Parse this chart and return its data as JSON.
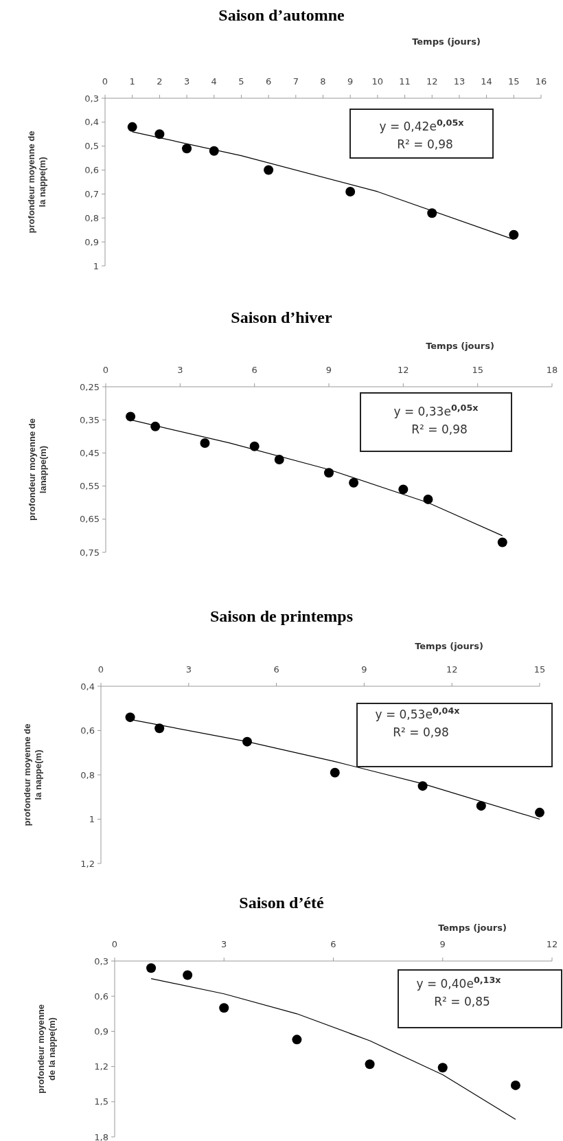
{
  "chart_data": [
    {
      "type": "scatter",
      "title": "Saison d’automne",
      "xlabel": "Temps (jours)",
      "ylabel": "profondeur moyenne de\nla nappe(m)",
      "marker": "circle",
      "xlim": [
        0,
        16
      ],
      "xticks": [
        0,
        1,
        2,
        3,
        4,
        5,
        6,
        7,
        8,
        9,
        10,
        11,
        12,
        13,
        14,
        15,
        16
      ],
      "ylim": [
        1,
        0.3
      ],
      "yticks": [
        {
          "value": 0.3,
          "label": "0,3"
        },
        {
          "value": 0.4,
          "label": "0,4"
        },
        {
          "value": 0.5,
          "label": "0,5"
        },
        {
          "value": 0.6,
          "label": "0,6"
        },
        {
          "value": 0.7,
          "label": "0,7"
        },
        {
          "value": 0.8,
          "label": "0,8"
        },
        {
          "value": 0.9,
          "label": "0,9"
        },
        {
          "value": 1,
          "label": "1"
        }
      ],
      "annotations": [
        "y = 0,42e$^{0,05x}$",
        "R² = 0,98"
      ],
      "series": [
        {
          "color": "#000000",
          "x": [
            1,
            2,
            3,
            4,
            6,
            9,
            12,
            15
          ],
          "values": [
            0.42,
            0.45,
            0.51,
            0.52,
            0.6,
            0.69,
            0.78,
            0.87
          ]
        },
        {
          "type": "line",
          "marker": "none",
          "color": "#000000",
          "x": [
            1,
            5,
            10,
            15
          ],
          "values": [
            0.44,
            0.54,
            0.69,
            0.89
          ]
        }
      ]
    },
    {
      "type": "scatter",
      "title": "Saison d’hiver",
      "xlabel": "Temps (jours)",
      "ylabel": "profondeur moyenne de\nlanappe(m)",
      "marker": "circle",
      "xlim": [
        0,
        18
      ],
      "xticks": [
        0,
        3,
        6,
        9,
        12,
        15,
        18
      ],
      "ylim": [
        0.75,
        0.25
      ],
      "yticks": [
        {
          "value": 0.25,
          "label": "0,25"
        },
        {
          "value": 0.35,
          "label": "0,35"
        },
        {
          "value": 0.45,
          "label": "0,45"
        },
        {
          "value": 0.55,
          "label": "0,55"
        },
        {
          "value": 0.65,
          "label": "0,65"
        },
        {
          "value": 0.75,
          "label": "0,75"
        }
      ],
      "annotations": [
        "y = 0,33e$^{0,05x}$",
        "R² = 0,98"
      ],
      "series": [
        {
          "color": "#000000",
          "x": [
            1,
            2,
            4,
            6,
            7,
            9,
            10,
            12,
            13,
            16
          ],
          "values": [
            0.34,
            0.37,
            0.42,
            0.43,
            0.47,
            0.51,
            0.54,
            0.56,
            0.59,
            0.72
          ]
        },
        {
          "type": "line",
          "marker": "none",
          "color": "#000000",
          "x": [
            1,
            5,
            9,
            13,
            16
          ],
          "values": [
            0.35,
            0.42,
            0.5,
            0.6,
            0.7
          ]
        }
      ]
    },
    {
      "type": "scatter",
      "title": "Saison de printemps",
      "xlabel": "Temps (jours)",
      "ylabel": "profondeur moyenne de\nla nappe(m)",
      "marker": "circle",
      "xlim": [
        0,
        15
      ],
      "xticks": [
        0,
        3,
        6,
        9,
        12,
        15
      ],
      "ylim": [
        1.2,
        0.4
      ],
      "yticks": [
        {
          "value": 0.4,
          "label": "0,4"
        },
        {
          "value": 0.6,
          "label": "0,6"
        },
        {
          "value": 0.8,
          "label": "0,8"
        },
        {
          "value": 1,
          "label": "1"
        },
        {
          "value": 1.2,
          "label": "1,2"
        }
      ],
      "annotations": [
        "y = 0,53e$^{0,04x}$",
        "R² = 0,98"
      ],
      "series": [
        {
          "color": "#000000",
          "x": [
            1,
            2,
            5,
            8,
            11,
            13,
            15
          ],
          "values": [
            0.54,
            0.59,
            0.65,
            0.79,
            0.85,
            0.94,
            0.97
          ]
        },
        {
          "type": "line",
          "marker": "none",
          "color": "#000000",
          "x": [
            1,
            5,
            8,
            11,
            15
          ],
          "values": [
            0.55,
            0.65,
            0.74,
            0.84,
            1.0
          ]
        }
      ]
    },
    {
      "type": "scatter",
      "title": "Saison d’été",
      "xlabel": "Temps (jours)",
      "ylabel": "profondeur moyenne\nde la nappe(m)",
      "marker": "circle",
      "xlim": [
        0,
        12
      ],
      "xticks": [
        0,
        3,
        6,
        9,
        12
      ],
      "ylim": [
        1.8,
        0.3
      ],
      "yticks": [
        {
          "value": 0.3,
          "label": "0,3"
        },
        {
          "value": 0.6,
          "label": "0,6"
        },
        {
          "value": 0.9,
          "label": "0,9"
        },
        {
          "value": 1.2,
          "label": "1,2"
        },
        {
          "value": 1.5,
          "label": "1,5"
        },
        {
          "value": 1.8,
          "label": "1,8"
        }
      ],
      "annotations": [
        "y = 0,40e$^{0,13x}$",
        "R² = 0,85"
      ],
      "series": [
        {
          "color": "#000000",
          "x": [
            1,
            2,
            3,
            5,
            7,
            9,
            11
          ],
          "values": [
            0.36,
            0.42,
            0.7,
            0.97,
            1.18,
            1.21,
            1.36
          ]
        },
        {
          "type": "line",
          "marker": "none",
          "color": "#000000",
          "x": [
            1,
            3,
            5,
            7,
            9,
            11
          ],
          "values": [
            0.45,
            0.58,
            0.75,
            0.98,
            1.27,
            1.65
          ]
        }
      ]
    }
  ]
}
